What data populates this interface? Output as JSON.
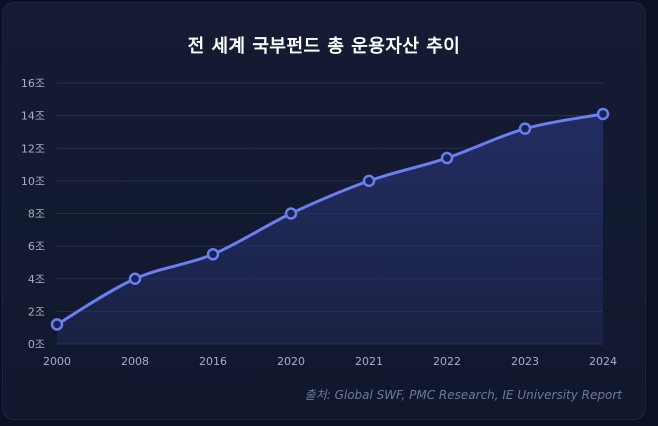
{
  "chart_data": {
    "type": "line",
    "title": "전 세계 국부펀드 총 운용자산 추이",
    "source": "출처: Global SWF, PMC Research, IE University Report",
    "categories": [
      "2000",
      "2008",
      "2016",
      "2020",
      "2021",
      "2022",
      "2023",
      "2024"
    ],
    "series": [
      {
        "values": [
          1.2,
          4.0,
          5.5,
          8.0,
          10.0,
          11.4,
          13.2,
          14.1
        ]
      }
    ],
    "ylim": [
      0,
      16
    ],
    "yticks": [
      0,
      2,
      4,
      6,
      8,
      10,
      12,
      14,
      16
    ],
    "ytick_labels": [
      "0조",
      "2조",
      "4조",
      "6조",
      "8조",
      "10조",
      "12조",
      "14조",
      "16조"
    ],
    "grid": true,
    "colors": {
      "line": "#6b7ff0",
      "area": "#26306a",
      "grid": "#263055",
      "point_fill": "#1b2350"
    }
  }
}
